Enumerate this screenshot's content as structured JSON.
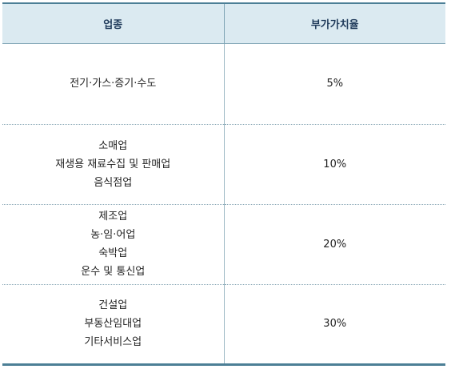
{
  "table": {
    "headers": [
      "업종",
      "부가가치율"
    ],
    "rows": [
      {
        "industries": [
          "전기·가스·증기·수도"
        ],
        "rate": "5%"
      },
      {
        "industries": [
          "소매업",
          "재생용 재료수집 및 판매업",
          "음식점업"
        ],
        "rate": "10%"
      },
      {
        "industries": [
          "제조업",
          "농·임·어업",
          "숙박업",
          "운수 및 통신업"
        ],
        "rate": "20%"
      },
      {
        "industries": [
          "건설업",
          "부동산임대업",
          "기타서비스업"
        ],
        "rate": "30%"
      }
    ]
  },
  "colors": {
    "header_bg": "#dbeaf1",
    "border_dark": "#4c7f96",
    "border_light": "#8aa8b6"
  }
}
